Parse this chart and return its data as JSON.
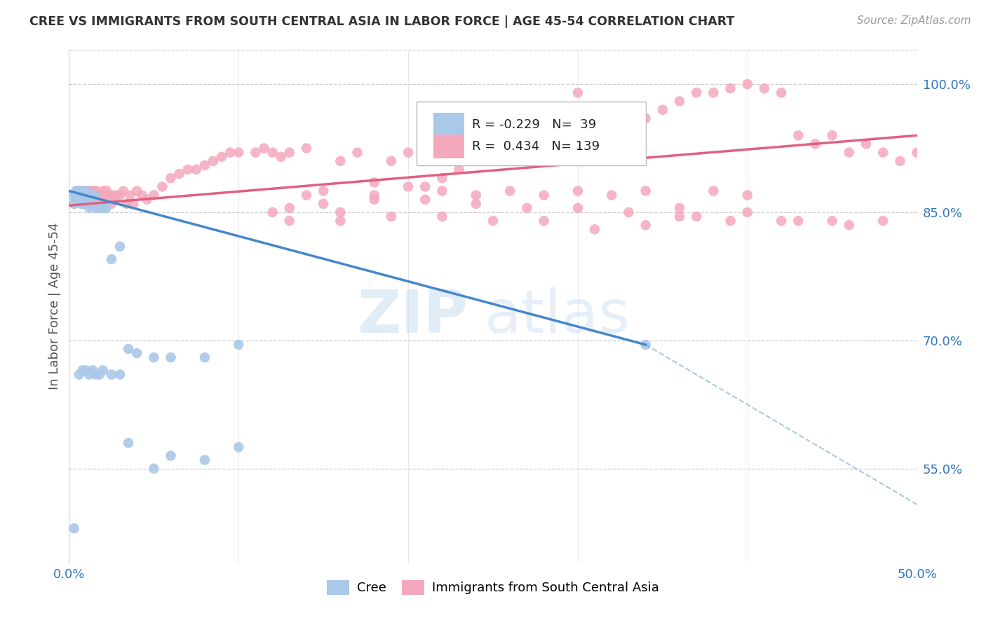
{
  "title": "CREE VS IMMIGRANTS FROM SOUTH CENTRAL ASIA IN LABOR FORCE | AGE 45-54 CORRELATION CHART",
  "source": "Source: ZipAtlas.com",
  "ylabel": "In Labor Force | Age 45-54",
  "xlim": [
    0.0,
    0.5
  ],
  "ylim": [
    0.44,
    1.04
  ],
  "yticks": [
    0.55,
    0.7,
    0.85,
    1.0
  ],
  "ytick_labels": [
    "55.0%",
    "70.0%",
    "85.0%",
    "100.0%"
  ],
  "xticks": [
    0.0,
    0.1,
    0.2,
    0.3,
    0.4,
    0.5
  ],
  "xtick_labels": [
    "0.0%",
    "",
    "",
    "",
    "",
    "50.0%"
  ],
  "legend_cree_r": "-0.229",
  "legend_cree_n": "39",
  "legend_imm_r": "0.434",
  "legend_imm_n": "139",
  "cree_color": "#aac8e8",
  "imm_color": "#f4a8bc",
  "cree_line_color": "#4488cc",
  "imm_line_color": "#e06080",
  "cree_line_x0": 0.0,
  "cree_line_y0": 0.875,
  "cree_line_x1": 0.34,
  "cree_line_y1": 0.695,
  "cree_line_x2": 0.5,
  "cree_line_y2": 0.508,
  "imm_line_x0": 0.0,
  "imm_line_y0": 0.858,
  "imm_line_x1": 0.5,
  "imm_line_y1": 0.94,
  "cree_x": [
    0.002,
    0.003,
    0.004,
    0.004,
    0.005,
    0.005,
    0.005,
    0.006,
    0.006,
    0.007,
    0.007,
    0.007,
    0.008,
    0.008,
    0.008,
    0.009,
    0.009,
    0.009,
    0.01,
    0.01,
    0.011,
    0.011,
    0.012,
    0.013,
    0.014,
    0.015,
    0.016,
    0.018,
    0.02,
    0.022,
    0.025,
    0.03,
    0.035,
    0.04,
    0.05,
    0.06,
    0.08,
    0.1,
    0.34
  ],
  "cree_y": [
    0.87,
    0.86,
    0.875,
    0.87,
    0.87,
    0.87,
    0.875,
    0.87,
    0.875,
    0.86,
    0.87,
    0.87,
    0.86,
    0.875,
    0.87,
    0.86,
    0.87,
    0.875,
    0.87,
    0.875,
    0.87,
    0.865,
    0.855,
    0.87,
    0.86,
    0.87,
    0.855,
    0.855,
    0.855,
    0.855,
    0.795,
    0.81,
    0.69,
    0.685,
    0.68,
    0.68,
    0.68,
    0.695,
    0.695
  ],
  "cree_outlier_x": [
    0.003,
    0.006,
    0.008,
    0.01,
    0.012,
    0.014,
    0.016,
    0.018,
    0.02,
    0.025,
    0.03,
    0.035,
    0.05,
    0.06,
    0.08,
    0.1
  ],
  "cree_outlier_y": [
    0.48,
    0.66,
    0.665,
    0.665,
    0.66,
    0.665,
    0.66,
    0.66,
    0.665,
    0.66,
    0.66,
    0.58,
    0.55,
    0.565,
    0.56,
    0.575
  ],
  "imm_x": [
    0.003,
    0.004,
    0.005,
    0.005,
    0.006,
    0.006,
    0.007,
    0.007,
    0.008,
    0.008,
    0.009,
    0.009,
    0.01,
    0.01,
    0.011,
    0.011,
    0.012,
    0.012,
    0.013,
    0.013,
    0.014,
    0.014,
    0.015,
    0.015,
    0.016,
    0.016,
    0.017,
    0.018,
    0.019,
    0.02,
    0.021,
    0.022,
    0.023,
    0.024,
    0.025,
    0.026,
    0.027,
    0.028,
    0.03,
    0.032,
    0.034,
    0.036,
    0.038,
    0.04,
    0.043,
    0.046,
    0.05,
    0.055,
    0.06,
    0.065,
    0.07,
    0.075,
    0.08,
    0.085,
    0.09,
    0.095,
    0.1,
    0.11,
    0.115,
    0.12,
    0.125,
    0.13,
    0.14,
    0.15,
    0.16,
    0.17,
    0.18,
    0.19,
    0.2,
    0.21,
    0.22,
    0.23,
    0.24,
    0.25,
    0.26,
    0.27,
    0.28,
    0.29,
    0.3,
    0.31,
    0.32,
    0.33,
    0.34,
    0.35,
    0.36,
    0.37,
    0.38,
    0.39,
    0.4,
    0.41,
    0.42,
    0.43,
    0.44,
    0.45,
    0.46,
    0.47,
    0.48,
    0.49,
    0.5,
    0.13,
    0.14,
    0.16,
    0.18,
    0.2,
    0.22,
    0.24,
    0.26,
    0.28,
    0.3,
    0.32,
    0.34,
    0.36,
    0.38,
    0.4,
    0.12,
    0.15,
    0.18,
    0.21,
    0.24,
    0.27,
    0.3,
    0.33,
    0.36,
    0.39,
    0.42,
    0.45,
    0.48,
    0.13,
    0.16,
    0.19,
    0.22,
    0.25,
    0.28,
    0.31,
    0.34,
    0.37,
    0.4,
    0.43,
    0.46
  ],
  "imm_y": [
    0.86,
    0.87,
    0.87,
    0.875,
    0.87,
    0.875,
    0.87,
    0.875,
    0.87,
    0.87,
    0.87,
    0.87,
    0.875,
    0.87,
    0.875,
    0.87,
    0.875,
    0.87,
    0.86,
    0.875,
    0.875,
    0.87,
    0.875,
    0.87,
    0.875,
    0.87,
    0.86,
    0.86,
    0.87,
    0.875,
    0.865,
    0.875,
    0.87,
    0.865,
    0.86,
    0.87,
    0.865,
    0.87,
    0.87,
    0.875,
    0.86,
    0.87,
    0.86,
    0.875,
    0.87,
    0.865,
    0.87,
    0.88,
    0.89,
    0.895,
    0.9,
    0.9,
    0.905,
    0.91,
    0.915,
    0.92,
    0.92,
    0.92,
    0.925,
    0.92,
    0.915,
    0.92,
    0.925,
    0.875,
    0.91,
    0.92,
    0.885,
    0.91,
    0.92,
    0.88,
    0.89,
    0.9,
    0.91,
    0.915,
    0.92,
    0.93,
    0.935,
    0.94,
    0.99,
    0.94,
    0.94,
    0.95,
    0.96,
    0.97,
    0.98,
    0.99,
    0.99,
    0.995,
    1.0,
    0.995,
    0.99,
    0.94,
    0.93,
    0.94,
    0.92,
    0.93,
    0.92,
    0.91,
    0.92,
    0.855,
    0.87,
    0.85,
    0.87,
    0.88,
    0.875,
    0.87,
    0.875,
    0.87,
    0.875,
    0.87,
    0.875,
    0.855,
    0.875,
    0.87,
    0.85,
    0.86,
    0.865,
    0.865,
    0.86,
    0.855,
    0.855,
    0.85,
    0.845,
    0.84,
    0.84,
    0.84,
    0.84,
    0.84,
    0.84,
    0.845,
    0.845,
    0.84,
    0.84,
    0.83,
    0.835,
    0.845,
    0.85,
    0.84,
    0.835
  ]
}
